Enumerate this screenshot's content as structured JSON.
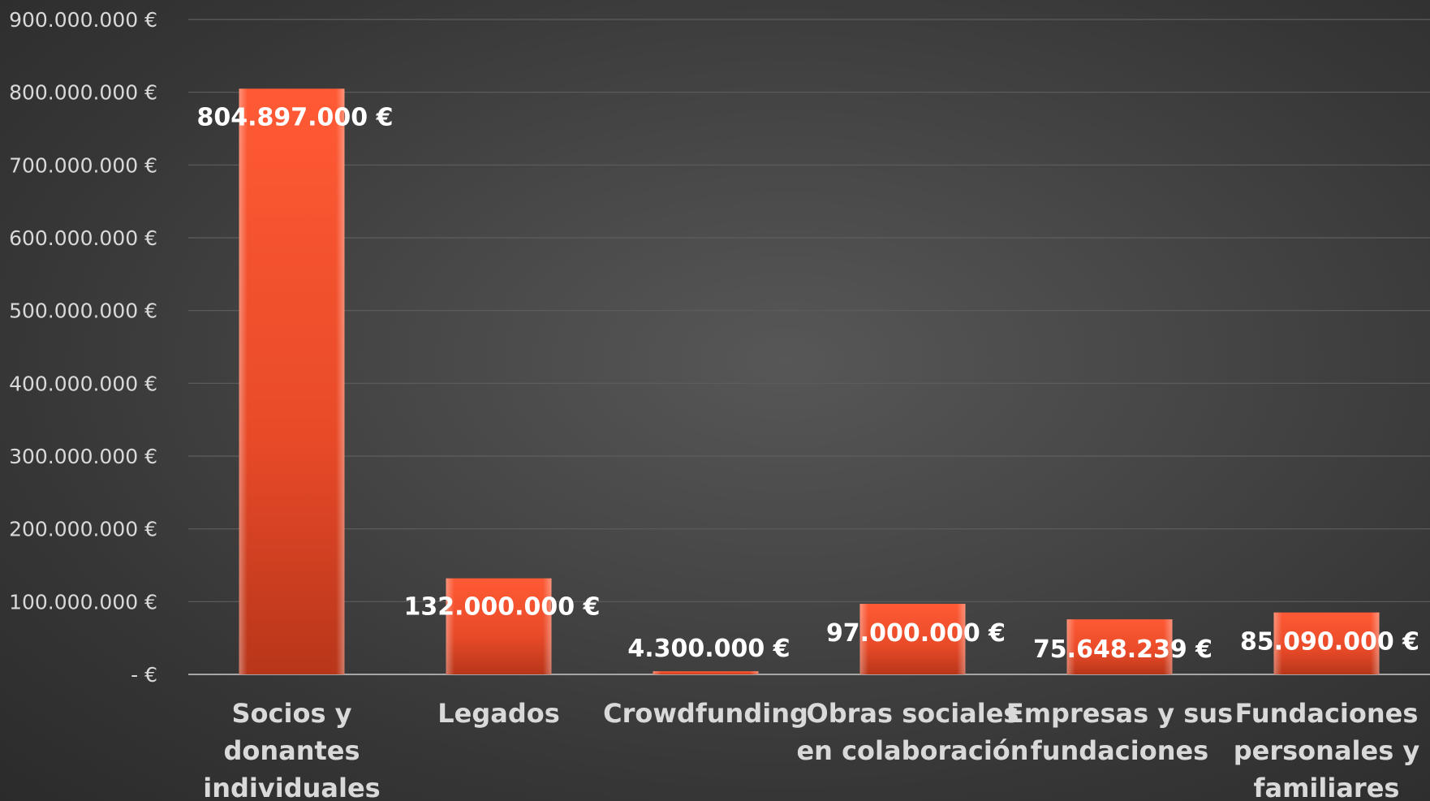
{
  "chart_data": {
    "type": "bar",
    "title": "",
    "xlabel": "",
    "ylabel": "",
    "ylim": [
      0,
      900000000
    ],
    "grid": true,
    "legend": "none",
    "bar_color": "#f2532f",
    "y_ticks": [
      {
        "value": 0,
        "label": "-   €"
      },
      {
        "value": 100000000,
        "label": "100.000.000 €"
      },
      {
        "value": 200000000,
        "label": "200.000.000 €"
      },
      {
        "value": 300000000,
        "label": "300.000.000 €"
      },
      {
        "value": 400000000,
        "label": "400.000.000 €"
      },
      {
        "value": 500000000,
        "label": "500.000.000 €"
      },
      {
        "value": 600000000,
        "label": "600.000.000 €"
      },
      {
        "value": 700000000,
        "label": "700.000.000 €"
      },
      {
        "value": 800000000,
        "label": "800.000.000 €"
      },
      {
        "value": 900000000,
        "label": "900.000.000 €"
      }
    ],
    "categories": [
      [
        "Socios y",
        "donantes",
        "individuales"
      ],
      [
        "Legados"
      ],
      [
        "Crowdfunding"
      ],
      [
        "Obras sociales",
        "en colaboración"
      ],
      [
        "Empresas y sus",
        "fundaciones"
      ],
      [
        "Fundaciones",
        "personales y",
        "familiares"
      ]
    ],
    "values": [
      804897000,
      132000000,
      4300000,
      97000000,
      75648239,
      85090000
    ],
    "data_labels": [
      "804.897.000 €",
      "132.000.000 €",
      "4.300.000 €",
      "97.000.000 €",
      "75.648.239 €",
      "85.090.000 €"
    ]
  }
}
